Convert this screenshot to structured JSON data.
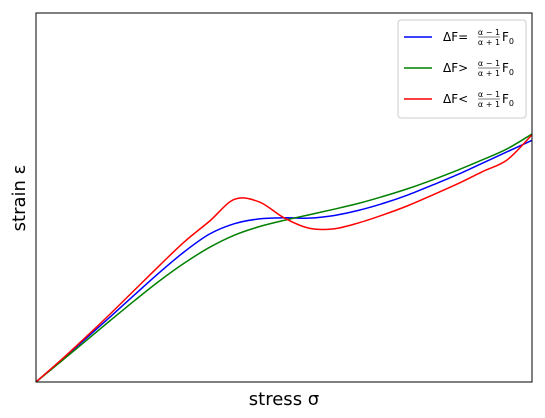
{
  "chart_data": {
    "type": "line",
    "title": "",
    "xlabel": "stress σ",
    "ylabel": "strain ε",
    "xlim": [
      0,
      1
    ],
    "ylim": [
      0,
      1
    ],
    "grid": false,
    "ticks": false,
    "legend_position": "top-right",
    "series": [
      {
        "name": "ΔF = (α−1)/(α+1) F₀",
        "legend": {
          "lhs": "ΔF",
          "op": "=",
          "num": "α − 1",
          "den": "α + 1",
          "rhs": "F",
          "sub": "0"
        },
        "color": "#0000ff",
        "x": [
          0.0,
          0.05,
          0.1,
          0.15,
          0.2,
          0.25,
          0.3,
          0.35,
          0.4,
          0.45,
          0.5,
          0.55,
          0.6,
          0.65,
          0.7,
          0.75,
          0.8,
          0.85,
          0.9,
          0.95,
          1.0
        ],
        "y": [
          0.0,
          0.058,
          0.117,
          0.177,
          0.238,
          0.298,
          0.354,
          0.401,
          0.429,
          0.442,
          0.445,
          0.444,
          0.451,
          0.465,
          0.484,
          0.507,
          0.534,
          0.562,
          0.593,
          0.624,
          0.655
        ]
      },
      {
        "name": "ΔF > (α−1)/(α+1) F₀",
        "legend": {
          "lhs": "ΔF",
          "op": ">",
          "num": "α − 1",
          "den": "α + 1",
          "rhs": "F",
          "sub": "0"
        },
        "color": "#008000",
        "x": [
          0.0,
          0.05,
          0.1,
          0.15,
          0.2,
          0.25,
          0.3,
          0.35,
          0.4,
          0.45,
          0.5,
          0.55,
          0.6,
          0.65,
          0.7,
          0.75,
          0.8,
          0.85,
          0.9,
          0.95,
          1.0
        ],
        "y": [
          0.0,
          0.055,
          0.111,
          0.167,
          0.222,
          0.275,
          0.323,
          0.365,
          0.398,
          0.421,
          0.438,
          0.453,
          0.468,
          0.484,
          0.503,
          0.524,
          0.548,
          0.574,
          0.602,
          0.632,
          0.672
        ]
      },
      {
        "name": "ΔF < (α−1)/(α+1) F₀",
        "legend": {
          "lhs": "ΔF",
          "op": "<",
          "num": "α − 1",
          "den": "α + 1",
          "rhs": "F",
          "sub": "0"
        },
        "color": "#ff0000",
        "x": [
          0.0,
          0.05,
          0.1,
          0.15,
          0.2,
          0.25,
          0.3,
          0.35,
          0.4,
          0.45,
          0.5,
          0.55,
          0.6,
          0.65,
          0.7,
          0.75,
          0.8,
          0.85,
          0.9,
          0.95,
          1.0
        ],
        "y": [
          0.0,
          0.059,
          0.121,
          0.185,
          0.251,
          0.317,
          0.381,
          0.436,
          0.495,
          0.488,
          0.445,
          0.417,
          0.415,
          0.431,
          0.453,
          0.478,
          0.507,
          0.537,
          0.57,
          0.602,
          0.67
        ]
      }
    ]
  }
}
